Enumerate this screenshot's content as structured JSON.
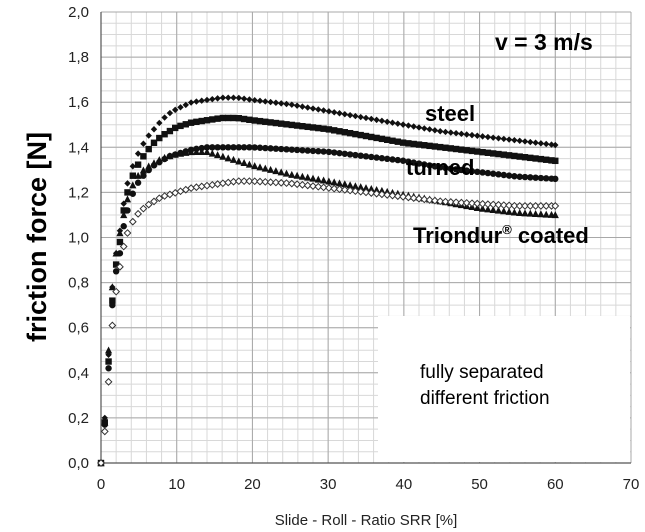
{
  "chart_data": {
    "type": "scatter",
    "title": "",
    "xlabel": "Slide - Roll - Ratio SRR  [%]",
    "ylabel": "friction force [N]",
    "xlim": [
      0,
      70
    ],
    "ylim": [
      0,
      2.0
    ],
    "xticks": [
      0,
      10,
      20,
      30,
      40,
      50,
      60,
      70
    ],
    "yticks": [
      "0,0",
      "0,2",
      "0,4",
      "0,6",
      "0,8",
      "1,0",
      "1,2",
      "1,4",
      "1,6",
      "1,8",
      "2,0"
    ],
    "xtick_labels": [
      "0",
      "10",
      "20",
      "30",
      "40",
      "50",
      "60",
      "70"
    ],
    "grid": true,
    "annotations": {
      "speed": "v = 3 m/s",
      "steel": "steel",
      "turned": "turned",
      "triondur": "Triondur",
      "triondur_sup": "®",
      "triondur_suffix": " coated",
      "note_line1": "fully separated",
      "note_line2": "different friction"
    },
    "series": [
      {
        "marker": "diamond-filled",
        "color": "#111111",
        "points": [
          [
            0,
            0.0
          ],
          [
            0.5,
            0.2
          ],
          [
            1,
            0.48
          ],
          [
            1.5,
            0.78
          ],
          [
            2,
            0.93
          ],
          [
            2.5,
            1.03
          ],
          [
            3,
            1.15
          ],
          [
            3.5,
            1.24
          ],
          [
            4,
            1.3
          ],
          [
            5,
            1.38
          ],
          [
            6,
            1.44
          ],
          [
            7,
            1.48
          ],
          [
            8,
            1.52
          ],
          [
            9,
            1.55
          ],
          [
            10,
            1.57
          ],
          [
            12,
            1.6
          ],
          [
            14,
            1.61
          ],
          [
            16,
            1.62
          ],
          [
            18,
            1.62
          ],
          [
            20,
            1.61
          ],
          [
            25,
            1.59
          ],
          [
            30,
            1.56
          ],
          [
            35,
            1.53
          ],
          [
            40,
            1.5
          ],
          [
            45,
            1.47
          ],
          [
            50,
            1.45
          ],
          [
            55,
            1.43
          ],
          [
            60,
            1.41
          ]
        ]
      },
      {
        "marker": "square-filled",
        "color": "#111111",
        "points": [
          [
            0,
            0.0
          ],
          [
            0.5,
            0.18
          ],
          [
            1,
            0.45
          ],
          [
            1.5,
            0.72
          ],
          [
            2,
            0.88
          ],
          [
            2.5,
            0.98
          ],
          [
            3,
            1.12
          ],
          [
            3.5,
            1.2
          ],
          [
            4,
            1.26
          ],
          [
            5,
            1.33
          ],
          [
            6,
            1.38
          ],
          [
            7,
            1.42
          ],
          [
            8,
            1.45
          ],
          [
            9,
            1.47
          ],
          [
            10,
            1.49
          ],
          [
            12,
            1.51
          ],
          [
            14,
            1.52
          ],
          [
            16,
            1.53
          ],
          [
            18,
            1.53
          ],
          [
            20,
            1.52
          ],
          [
            25,
            1.5
          ],
          [
            30,
            1.48
          ],
          [
            35,
            1.45
          ],
          [
            40,
            1.42
          ],
          [
            45,
            1.4
          ],
          [
            50,
            1.38
          ],
          [
            55,
            1.36
          ],
          [
            60,
            1.34
          ]
        ]
      },
      {
        "marker": "circle-filled",
        "color": "#111111",
        "points": [
          [
            0,
            0.0
          ],
          [
            0.5,
            0.17
          ],
          [
            1,
            0.42
          ],
          [
            1.5,
            0.7
          ],
          [
            2,
            0.85
          ],
          [
            2.5,
            0.93
          ],
          [
            3,
            1.05
          ],
          [
            3.5,
            1.12
          ],
          [
            4,
            1.18
          ],
          [
            5,
            1.25
          ],
          [
            6,
            1.29
          ],
          [
            7,
            1.32
          ],
          [
            8,
            1.34
          ],
          [
            9,
            1.36
          ],
          [
            10,
            1.37
          ],
          [
            12,
            1.39
          ],
          [
            14,
            1.4
          ],
          [
            16,
            1.4
          ],
          [
            18,
            1.4
          ],
          [
            20,
            1.4
          ],
          [
            25,
            1.39
          ],
          [
            30,
            1.38
          ],
          [
            35,
            1.36
          ],
          [
            40,
            1.34
          ],
          [
            45,
            1.31
          ],
          [
            50,
            1.29
          ],
          [
            55,
            1.27
          ],
          [
            60,
            1.26
          ]
        ]
      },
      {
        "marker": "triangle-filled",
        "color": "#111111",
        "points": [
          [
            0,
            0.0
          ],
          [
            0.5,
            0.18
          ],
          [
            1,
            0.5
          ],
          [
            1.5,
            0.78
          ],
          [
            2,
            0.93
          ],
          [
            2.5,
            1.02
          ],
          [
            3,
            1.1
          ],
          [
            3.5,
            1.17
          ],
          [
            4,
            1.22
          ],
          [
            5,
            1.28
          ],
          [
            6,
            1.31
          ],
          [
            7,
            1.33
          ],
          [
            8,
            1.35
          ],
          [
            9,
            1.36
          ],
          [
            10,
            1.37
          ],
          [
            12,
            1.38
          ],
          [
            14,
            1.38
          ],
          [
            16,
            1.36
          ],
          [
            18,
            1.34
          ],
          [
            20,
            1.32
          ],
          [
            25,
            1.28
          ],
          [
            30,
            1.25
          ],
          [
            35,
            1.22
          ],
          [
            40,
            1.19
          ],
          [
            45,
            1.16
          ],
          [
            50,
            1.13
          ],
          [
            55,
            1.11
          ],
          [
            60,
            1.1
          ]
        ]
      },
      {
        "marker": "diamond-open",
        "color": "#333333",
        "points": [
          [
            0,
            0.0
          ],
          [
            0.5,
            0.14
          ],
          [
            1,
            0.36
          ],
          [
            1.5,
            0.61
          ],
          [
            2,
            0.76
          ],
          [
            2.5,
            0.87
          ],
          [
            3,
            0.96
          ],
          [
            3.5,
            1.02
          ],
          [
            4,
            1.06
          ],
          [
            5,
            1.11
          ],
          [
            6,
            1.14
          ],
          [
            7,
            1.16
          ],
          [
            8,
            1.18
          ],
          [
            9,
            1.19
          ],
          [
            10,
            1.2
          ],
          [
            12,
            1.22
          ],
          [
            14,
            1.23
          ],
          [
            16,
            1.24
          ],
          [
            18,
            1.25
          ],
          [
            20,
            1.25
          ],
          [
            25,
            1.24
          ],
          [
            30,
            1.22
          ],
          [
            35,
            1.2
          ],
          [
            40,
            1.18
          ],
          [
            45,
            1.16
          ],
          [
            50,
            1.15
          ],
          [
            55,
            1.14
          ],
          [
            60,
            1.14
          ]
        ]
      }
    ]
  }
}
